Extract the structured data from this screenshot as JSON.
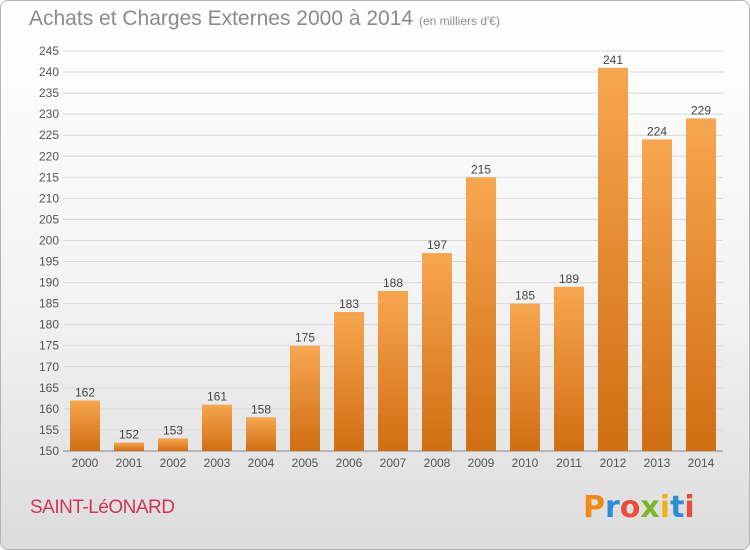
{
  "header": {
    "title": "Achats et Charges Externes 2000 à 2014",
    "subtitle": "(en milliers d'€)"
  },
  "footer": {
    "city": "SAINT-LéONARD",
    "brand": "Proxiti"
  },
  "colors": {
    "bar_top": "#f7a650",
    "bar_bottom": "#d06e13",
    "grid": "#d8d8d8",
    "axis_text": "#555555",
    "city": "#d0345a"
  },
  "chart_data": {
    "type": "bar",
    "title": "Achats et Charges Externes 2000 à 2014",
    "subtitle": "(en milliers d'€)",
    "categories": [
      "2000",
      "2001",
      "2002",
      "2003",
      "2004",
      "2005",
      "2006",
      "2007",
      "2008",
      "2009",
      "2010",
      "2011",
      "2012",
      "2013",
      "2014"
    ],
    "values": [
      162,
      152,
      153,
      161,
      158,
      175,
      183,
      188,
      197,
      215,
      185,
      189,
      241,
      224,
      229
    ],
    "ylim": [
      150,
      245
    ],
    "ytick_step": 5,
    "grid": true,
    "legend": "none"
  }
}
